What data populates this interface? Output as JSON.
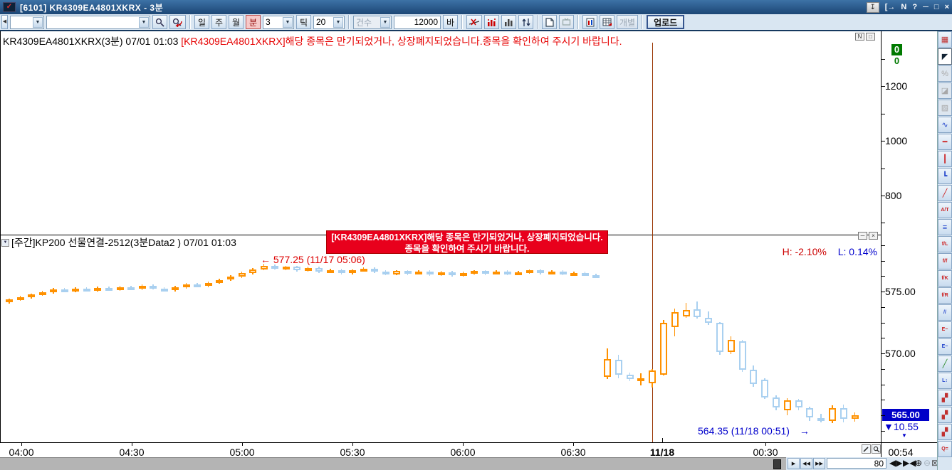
{
  "window": {
    "title": "[6101]  KR4309EA4801XKRX - 3분",
    "controls": {
      "exit": "[→",
      "news": "N",
      "help": "?",
      "minimize": "─",
      "maximize": "□",
      "close": "×"
    }
  },
  "toolbar": {
    "combo1_value": "",
    "combo2_value": "",
    "day": "일",
    "week": "주",
    "month": "월",
    "minute": "분",
    "minute_value": "3",
    "tick_label": "틱",
    "tick_value": "20",
    "count_label": "건수",
    "bar_count_value": "12000",
    "bar_label": "바",
    "individual_label": "개별",
    "upload_label": "업로드"
  },
  "upper_pane": {
    "title": "KR4309EA4801XKRX(3분) 07/01 01:03",
    "error_message": "[KR4309EA4801XKRX]해당 종목은 만기되었거나, 상장폐지되었습니다.종목을 확인하여 주시기 바랍니다.",
    "axis_highlight": "0",
    "axis_highlight2": "0",
    "axis_labels": [
      "1200",
      "1000",
      "800"
    ],
    "corner_icons": [
      "N",
      "□"
    ]
  },
  "lower_pane": {
    "title": "[주간]KP200 선물연결-2512(3분Data2 ) 07/01 01:03",
    "tooltip": {
      "line1": "[KR4309EA4801XKRX]해당 종목은 만기되었거나, 상장폐지되었습니다.",
      "line2": "종목을 확인하여 주시기 바랍니다."
    },
    "high_annotation": "← 577.25 (11/17 05:06)",
    "high_pct": "H: -2.10%",
    "low_pct": "L: 0.14%",
    "low_annotation": "564.35 (11/18 00:51)",
    "low_arrow": "→",
    "axis_labels": [
      "575.00",
      "570.00"
    ],
    "last_price": "565.00",
    "change": "▼10.55",
    "change_marker": "▼",
    "corner_icons": [
      "─",
      "×"
    ]
  },
  "time_axis": {
    "labels": [
      "04:00",
      "04:30",
      "05:00",
      "05:30",
      "06:00",
      "06:30",
      "11/18",
      "00:30"
    ],
    "current_time": "00:54"
  },
  "bottom_bar": {
    "bars_visible": "80"
  },
  "sidebar": {
    "icons": [
      {
        "name": "chart-format-icon",
        "glyph": "▦",
        "color": "#c03030"
      },
      {
        "name": "cursor-icon",
        "glyph": "◤",
        "color": "#123",
        "pressed": true
      },
      {
        "name": "percent-icon",
        "glyph": "%",
        "color": "#999",
        "disabled": true
      },
      {
        "name": "eraser-icon",
        "glyph": "◪",
        "color": "#999",
        "disabled": true
      },
      {
        "name": "erase-all-icon",
        "glyph": "▨",
        "color": "#999",
        "disabled": true
      },
      {
        "name": "zigzag-line-icon",
        "glyph": "∿",
        "color": "#2244cc"
      },
      {
        "name": "horizontal-line-icon",
        "glyph": "━",
        "color": "#cc2222"
      },
      {
        "name": "vertical-line-icon",
        "glyph": "┃",
        "color": "#cc2222"
      },
      {
        "name": "angle-line-icon",
        "glyph": "┗",
        "color": "#2244cc"
      },
      {
        "name": "trend-line-icon",
        "glyph": "╱",
        "color": "#cc2222"
      },
      {
        "name": "text-tool-icon",
        "glyph": "A/T",
        "color": "#cc2222",
        "small": true
      },
      {
        "name": "multi-line-icon",
        "glyph": "≡",
        "color": "#2244cc"
      },
      {
        "name": "fibo-line-icon",
        "glyph": "f/L",
        "color": "#cc2222",
        "small": true
      },
      {
        "name": "fibo-fan-icon",
        "glyph": "f/f",
        "color": "#cc2222",
        "small": true
      },
      {
        "name": "fibo-speed-icon",
        "glyph": "f/K",
        "color": "#cc2222",
        "small": true
      },
      {
        "name": "fibo-retrace-icon",
        "glyph": "f/R",
        "color": "#cc2222",
        "small": true
      },
      {
        "name": "parallel-channel-icon",
        "glyph": "//",
        "color": "#2244cc",
        "small": true
      },
      {
        "name": "elliott-wave1-icon",
        "glyph": "E~",
        "color": "#cc2222",
        "small": true
      },
      {
        "name": "elliott-wave2-icon",
        "glyph": "E~",
        "color": "#2244cc",
        "small": true
      },
      {
        "name": "pencil-icon",
        "glyph": "╱",
        "color": "#2a8a2a"
      },
      {
        "name": "low-high-icon",
        "glyph": "L↕",
        "color": "#2244cc",
        "small": true
      },
      {
        "name": "pattern-d-icon",
        "glyph": "▞",
        "color": "#c03030"
      },
      {
        "name": "pattern-e-icon",
        "glyph": "▞",
        "color": "#c03030"
      },
      {
        "name": "pattern-r-icon",
        "glyph": "▞",
        "color": "#c03030"
      },
      {
        "name": "quote-icon",
        "glyph": "Q=",
        "color": "#cc2222",
        "small": true
      }
    ]
  },
  "colors": {
    "up": "#ff9100",
    "down": "#a9d0f0",
    "separator": "#993300",
    "error_red": "#e60000",
    "tooltip_bg": "#e8001c",
    "annotation_red": "#dd0000",
    "annotation_blue": "#0000cc",
    "highlight_bg": "#0000c8",
    "green": "#007a00"
  },
  "chart_data": {
    "type": "candlestick",
    "instrument": "KP200 선물연결-2512",
    "interval": "3분",
    "last": 565.0,
    "change": -10.55,
    "high_label": {
      "price": 577.25,
      "time": "11/17 05:06"
    },
    "low_label": {
      "price": 564.35,
      "time": "11/18 00:51"
    },
    "price_axis": [
      575.0,
      570.0,
      565.0
    ],
    "upper_axis": [
      1200,
      1000,
      800
    ],
    "x_axis_labels": [
      "04:00",
      "04:30",
      "05:00",
      "05:30",
      "06:00",
      "06:30",
      "11/18",
      "00:30",
      "00:54"
    ],
    "sessions": [
      {
        "date": "11/17",
        "start": "04:00",
        "interval_min": 3,
        "candles": [
          [
            574.15,
            574.45,
            574.05,
            574.35
          ],
          [
            574.35,
            574.65,
            574.25,
            574.55
          ],
          [
            574.55,
            574.85,
            574.45,
            574.75
          ],
          [
            574.75,
            575.05,
            574.65,
            574.95
          ],
          [
            574.95,
            575.3,
            574.85,
            575.2
          ],
          [
            575.2,
            575.3,
            574.95,
            575.05
          ],
          [
            575.05,
            575.35,
            574.95,
            575.25
          ],
          [
            575.25,
            575.35,
            575.0,
            575.1
          ],
          [
            575.1,
            575.4,
            575.0,
            575.3
          ],
          [
            575.3,
            575.4,
            575.05,
            575.15
          ],
          [
            575.15,
            575.45,
            575.05,
            575.35
          ],
          [
            575.35,
            575.45,
            575.1,
            575.2
          ],
          [
            575.2,
            575.55,
            575.1,
            575.45
          ],
          [
            575.45,
            575.55,
            575.15,
            575.25
          ],
          [
            575.25,
            575.35,
            575.0,
            575.1
          ],
          [
            575.1,
            575.45,
            575.0,
            575.35
          ],
          [
            575.35,
            575.7,
            575.25,
            575.6
          ],
          [
            575.6,
            575.7,
            575.35,
            575.45
          ],
          [
            575.45,
            575.8,
            575.35,
            575.7
          ],
          [
            575.7,
            576.05,
            575.6,
            575.95
          ],
          [
            575.95,
            576.3,
            575.85,
            576.2
          ],
          [
            576.2,
            576.6,
            576.1,
            576.5
          ],
          [
            576.5,
            576.9,
            576.4,
            576.8
          ],
          [
            576.8,
            577.25,
            576.7,
            577.1
          ],
          [
            577.1,
            577.2,
            576.75,
            576.85
          ],
          [
            576.85,
            577.1,
            576.75,
            577.0
          ],
          [
            577.0,
            577.1,
            576.6,
            576.7
          ],
          [
            576.7,
            577.0,
            576.6,
            576.9
          ],
          [
            576.9,
            577.0,
            576.5,
            576.6
          ],
          [
            576.6,
            576.85,
            576.5,
            576.75
          ],
          [
            576.75,
            576.85,
            576.4,
            576.5
          ],
          [
            576.5,
            576.8,
            576.4,
            576.7
          ],
          [
            576.7,
            576.95,
            576.6,
            576.85
          ],
          [
            576.85,
            576.95,
            576.5,
            576.6
          ],
          [
            576.6,
            576.7,
            576.3,
            576.4
          ],
          [
            576.4,
            576.75,
            576.3,
            576.65
          ],
          [
            576.65,
            576.75,
            576.35,
            576.45
          ],
          [
            576.45,
            576.7,
            576.35,
            576.6
          ],
          [
            576.6,
            576.7,
            576.25,
            576.35
          ],
          [
            576.35,
            576.65,
            576.25,
            576.55
          ],
          [
            576.55,
            576.65,
            576.2,
            576.3
          ],
          [
            576.3,
            576.6,
            576.2,
            576.5
          ],
          [
            576.5,
            576.75,
            576.4,
            576.65
          ],
          [
            576.65,
            576.75,
            576.35,
            576.45
          ],
          [
            576.45,
            576.7,
            576.35,
            576.6
          ],
          [
            576.6,
            576.7,
            576.3,
            576.4
          ],
          [
            576.4,
            576.65,
            576.3,
            576.55
          ],
          [
            576.55,
            576.8,
            576.45,
            576.7
          ],
          [
            576.7,
            576.8,
            576.4,
            576.5
          ],
          [
            576.5,
            576.7,
            576.4,
            576.6
          ],
          [
            576.6,
            576.7,
            576.3,
            576.4
          ],
          [
            576.4,
            576.6,
            576.3,
            576.5
          ],
          [
            576.5,
            576.6,
            576.25,
            576.35
          ],
          [
            576.35,
            576.45,
            576.2,
            576.3
          ]
        ]
      },
      {
        "date": "11/18",
        "start": "23:45",
        "interval_min": 3,
        "candles": [
          [
            568.1,
            570.4,
            567.95,
            569.55
          ],
          [
            569.5,
            569.9,
            568.0,
            568.3
          ],
          [
            568.3,
            568.45,
            567.75,
            567.95
          ],
          [
            567.95,
            568.4,
            567.4,
            568.0
          ],
          [
            567.6,
            568.75,
            567.25,
            568.6
          ],
          [
            568.3,
            572.7,
            568.2,
            572.5
          ],
          [
            572.1,
            573.6,
            571.4,
            573.35
          ],
          [
            573.0,
            574.1,
            572.9,
            573.5
          ],
          [
            573.55,
            574.2,
            572.8,
            572.9
          ],
          [
            572.9,
            573.4,
            572.3,
            572.45
          ],
          [
            572.45,
            572.55,
            569.9,
            570.1
          ],
          [
            570.1,
            571.4,
            569.95,
            571.1
          ],
          [
            571.0,
            571.1,
            568.5,
            568.7
          ],
          [
            568.7,
            569.0,
            567.3,
            567.5
          ],
          [
            567.9,
            568.0,
            566.3,
            566.45
          ],
          [
            566.45,
            566.6,
            565.4,
            565.65
          ],
          [
            565.4,
            566.4,
            565.0,
            566.2
          ],
          [
            566.2,
            566.3,
            565.4,
            565.6
          ],
          [
            565.6,
            565.7,
            564.55,
            564.8
          ],
          [
            564.8,
            565.1,
            564.4,
            564.55
          ],
          [
            564.55,
            565.8,
            564.35,
            565.6
          ],
          [
            565.6,
            565.85,
            564.45,
            564.7
          ],
          [
            564.7,
            565.25,
            564.5,
            565.0
          ]
        ]
      }
    ]
  }
}
